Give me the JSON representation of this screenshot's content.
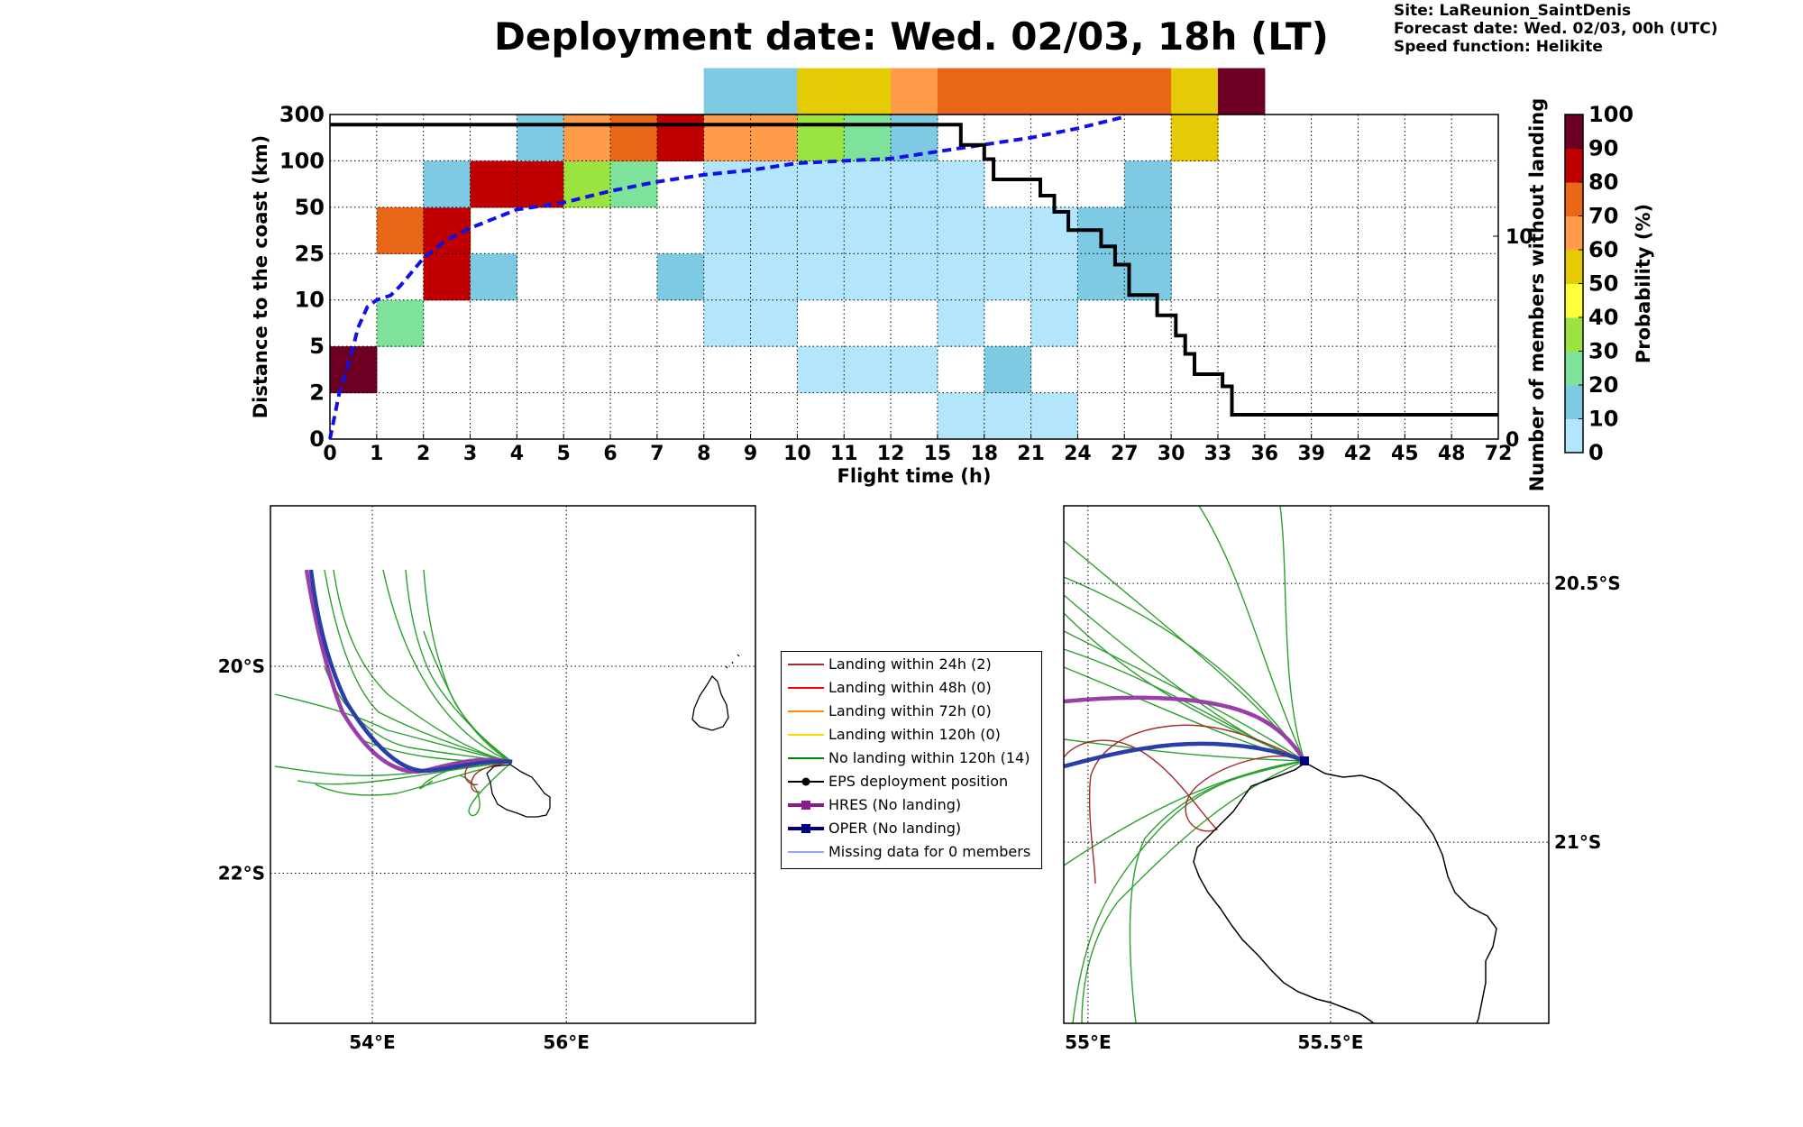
{
  "header": {
    "title": "Deployment date: Wed. 02/03, 18h (LT)",
    "site": "Site: LaReunion_SaintDenis",
    "forecast": "Forecast date: Wed. 02/03, 00h (UTC)",
    "speed": "Speed function: Helikite"
  },
  "chart_data": [
    {
      "type": "heatmap",
      "xlabel": "Flight time (h)",
      "ylabel": "Distance to the coast (km)",
      "ylabel_right": "Number of members without landing",
      "x_ticks": [
        "0",
        "1",
        "2",
        "3",
        "4",
        "5",
        "6",
        "7",
        "8",
        "9",
        "10",
        "11",
        "12",
        "15",
        "18",
        "21",
        "24",
        "27",
        "30",
        "33",
        "36",
        "39",
        "42",
        "45",
        "48",
        "72"
      ],
      "y_ticks": [
        "0",
        "2",
        "5",
        "10",
        "25",
        "50",
        "100",
        "300"
      ],
      "right_ticks": [
        "0",
        "10"
      ],
      "right_ylim": [
        0,
        16
      ],
      "colorbar": {
        "label": "Probability (%)",
        "ticks": [
          "0",
          "10",
          "20",
          "30",
          "40",
          "50",
          "60",
          "70",
          "80",
          "90",
          "100"
        ],
        "colors": [
          "#b3e5fc",
          "#7ecae3",
          "#7ee29a",
          "#9be341",
          "#ffff3c",
          "#e5cb05",
          "#ff9c4a",
          "#e86719",
          "#c00000",
          "#6d0022"
        ]
      },
      "cells": [
        {
          "x": 0,
          "y": 1,
          "v": 90
        },
        {
          "x": 1,
          "y": 2,
          "v": 20
        },
        {
          "x": 1,
          "y": 4,
          "v": 70
        },
        {
          "x": 2,
          "y": 3,
          "v": 80
        },
        {
          "x": 2,
          "y": 4,
          "v": 80
        },
        {
          "x": 2,
          "y": 5,
          "v": 10
        },
        {
          "x": 3,
          "y": 3,
          "v": 10
        },
        {
          "x": 3,
          "y": 5,
          "v": 80
        },
        {
          "x": 4,
          "y": 5,
          "v": 80
        },
        {
          "x": 4,
          "y": 6,
          "v": 10
        },
        {
          "x": 5,
          "y": 5,
          "v": 30
        },
        {
          "x": 5,
          "y": 6,
          "v": 60
        },
        {
          "x": 6,
          "y": 5,
          "v": 20
        },
        {
          "x": 6,
          "y": 6,
          "v": 70
        },
        {
          "x": 7,
          "y": 3,
          "v": 10
        },
        {
          "x": 7,
          "y": 6,
          "v": 80
        },
        {
          "x": 8,
          "y": 2,
          "v": 0
        },
        {
          "x": 8,
          "y": 3,
          "v": 0
        },
        {
          "x": 8,
          "y": 4,
          "v": 0
        },
        {
          "x": 8,
          "y": 5,
          "v": 0
        },
        {
          "x": 8,
          "y": 6,
          "v": 60
        },
        {
          "x": 8,
          "y": 7,
          "v": 10
        },
        {
          "x": 9,
          "y": 2,
          "v": 0
        },
        {
          "x": 9,
          "y": 3,
          "v": 0
        },
        {
          "x": 9,
          "y": 4,
          "v": 0
        },
        {
          "x": 9,
          "y": 5,
          "v": 0
        },
        {
          "x": 9,
          "y": 6,
          "v": 60
        },
        {
          "x": 9,
          "y": 7,
          "v": 10
        },
        {
          "x": 10,
          "y": 1,
          "v": 0
        },
        {
          "x": 10,
          "y": 3,
          "v": 0
        },
        {
          "x": 10,
          "y": 4,
          "v": 0
        },
        {
          "x": 10,
          "y": 5,
          "v": 0
        },
        {
          "x": 10,
          "y": 6,
          "v": 30
        },
        {
          "x": 10,
          "y": 7,
          "v": 50
        },
        {
          "x": 11,
          "y": 1,
          "v": 0
        },
        {
          "x": 11,
          "y": 3,
          "v": 0
        },
        {
          "x": 11,
          "y": 4,
          "v": 0
        },
        {
          "x": 11,
          "y": 5,
          "v": 0
        },
        {
          "x": 11,
          "y": 6,
          "v": 20
        },
        {
          "x": 11,
          "y": 7,
          "v": 50
        },
        {
          "x": 12,
          "y": 1,
          "v": 0
        },
        {
          "x": 12,
          "y": 3,
          "v": 0
        },
        {
          "x": 12,
          "y": 4,
          "v": 0
        },
        {
          "x": 12,
          "y": 5,
          "v": 0
        },
        {
          "x": 12,
          "y": 6,
          "v": 10
        },
        {
          "x": 12,
          "y": 7,
          "v": 60
        },
        {
          "x": 13,
          "y": 0,
          "v": 0
        },
        {
          "x": 13,
          "y": 2,
          "v": 0
        },
        {
          "x": 13,
          "y": 3,
          "v": 0
        },
        {
          "x": 13,
          "y": 4,
          "v": 0
        },
        {
          "x": 13,
          "y": 5,
          "v": 0
        },
        {
          "x": 13,
          "y": 7,
          "v": 70
        },
        {
          "x": 14,
          "y": 0,
          "v": 0
        },
        {
          "x": 14,
          "y": 1,
          "v": 10
        },
        {
          "x": 14,
          "y": 3,
          "v": 0
        },
        {
          "x": 14,
          "y": 4,
          "v": 0
        },
        {
          "x": 14,
          "y": 7,
          "v": 70
        },
        {
          "x": 15,
          "y": 0,
          "v": 0
        },
        {
          "x": 15,
          "y": 2,
          "v": 0
        },
        {
          "x": 15,
          "y": 3,
          "v": 0
        },
        {
          "x": 15,
          "y": 4,
          "v": 0
        },
        {
          "x": 15,
          "y": 7,
          "v": 70
        },
        {
          "x": 16,
          "y": 3,
          "v": 10
        },
        {
          "x": 16,
          "y": 4,
          "v": 10
        },
        {
          "x": 16,
          "y": 7,
          "v": 70
        },
        {
          "x": 17,
          "y": 3,
          "v": 10
        },
        {
          "x": 17,
          "y": 4,
          "v": 10
        },
        {
          "x": 17,
          "y": 5,
          "v": 10
        },
        {
          "x": 17,
          "y": 7,
          "v": 70
        },
        {
          "x": 18,
          "y": 6,
          "v": 50
        },
        {
          "x": 18,
          "y": 7,
          "v": 50
        },
        {
          "x": 19,
          "y": 7,
          "v": 90
        }
      ],
      "dashed_curve": [
        [
          0,
          0
        ],
        [
          0.2,
          1
        ],
        [
          0.45,
          1.8
        ],
        [
          0.6,
          2.4
        ],
        [
          0.8,
          2.85
        ],
        [
          1,
          3
        ],
        [
          1.3,
          3.1
        ],
        [
          1.5,
          3.3
        ],
        [
          2,
          3.9
        ],
        [
          2.5,
          4.3
        ],
        [
          3,
          4.55
        ],
        [
          3.5,
          4.75
        ],
        [
          4,
          4.95
        ],
        [
          5,
          5.1
        ],
        [
          6,
          5.35
        ],
        [
          7,
          5.55
        ],
        [
          8,
          5.7
        ],
        [
          9,
          5.8
        ],
        [
          10,
          5.95
        ],
        [
          11,
          6.0
        ],
        [
          12,
          6.05
        ],
        [
          13,
          6.2
        ],
        [
          14,
          6.35
        ],
        [
          15,
          6.5
        ],
        [
          16,
          6.7
        ],
        [
          17,
          6.95
        ]
      ],
      "members_steps": [
        [
          0,
          15.5
        ],
        [
          13.5,
          15.5
        ],
        [
          13.5,
          14.5
        ],
        [
          14,
          14.5
        ],
        [
          14,
          13.8
        ],
        [
          14.2,
          13.8
        ],
        [
          14.2,
          12.8
        ],
        [
          15.2,
          12.8
        ],
        [
          15.2,
          12
        ],
        [
          15.5,
          12
        ],
        [
          15.5,
          11.2
        ],
        [
          15.8,
          11.2
        ],
        [
          15.8,
          10.3
        ],
        [
          16.5,
          10.3
        ],
        [
          16.5,
          9.5
        ],
        [
          16.8,
          9.5
        ],
        [
          16.8,
          8.6
        ],
        [
          17.1,
          8.6
        ],
        [
          17.1,
          7.1
        ],
        [
          17.7,
          7.1
        ],
        [
          17.7,
          6.1
        ],
        [
          18.1,
          6.1
        ],
        [
          18.1,
          5.1
        ],
        [
          18.3,
          5.1
        ],
        [
          18.3,
          4.2
        ],
        [
          18.5,
          4.2
        ],
        [
          18.5,
          3.2
        ],
        [
          19.1,
          3.2
        ],
        [
          19.1,
          2.6
        ],
        [
          19.3,
          2.6
        ],
        [
          19.3,
          1.2
        ],
        [
          25,
          1.2
        ]
      ]
    },
    {
      "type": "map",
      "x_ticks": [
        "54°E",
        "56°E"
      ],
      "y_ticks": [
        "20°S",
        "22°S"
      ],
      "xlim": [
        53.0,
        58.0
      ],
      "ylim": [
        -23.4,
        -18.4
      ]
    },
    {
      "type": "map",
      "x_ticks": [
        "55°E",
        "55.5°E"
      ],
      "y_ticks": [
        "20.5°S",
        "21°S"
      ],
      "xlim": [
        54.95,
        55.95
      ],
      "ylim": [
        -21.35,
        -20.35
      ]
    }
  ],
  "legend": [
    {
      "label": "Landing within 24h (2)",
      "color": "#a52a2a",
      "marker": "none",
      "width": 2
    },
    {
      "label": "Landing within 48h (0)",
      "color": "#ff0000",
      "marker": "none",
      "width": 2
    },
    {
      "label": "Landing within 72h (0)",
      "color": "#ff8c00",
      "marker": "none",
      "width": 2
    },
    {
      "label": "Landing within 120h (0)",
      "color": "#ffd700",
      "marker": "none",
      "width": 2
    },
    {
      "label": "No landing within 120h (14)",
      "color": "#008000",
      "marker": "none",
      "width": 2
    },
    {
      "label": "EPS deployment position",
      "color": "#000000",
      "marker": "circle",
      "width": 2
    },
    {
      "label": "HRES (No landing)",
      "color": "#8b1a8b",
      "marker": "square",
      "width": 4
    },
    {
      "label": "OPER (No landing)",
      "color": "#000080",
      "marker": "square",
      "width": 4
    },
    {
      "label": "Missing data for 0 members",
      "color": "#3344ff",
      "marker": "none",
      "width": 1
    }
  ]
}
